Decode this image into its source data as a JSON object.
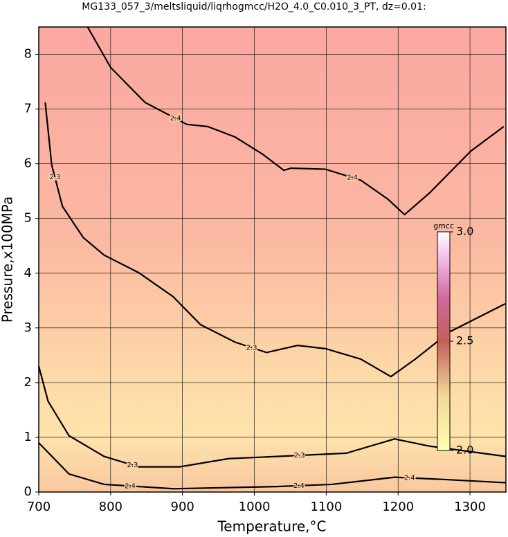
{
  "chart_data": {
    "type": "contour",
    "title": "MG133_057_3/meltsliquid/liqrhogmcc/H2O_4.0_C0.010_3_PT, dz=0.01:",
    "x_label": "Temperature,°C",
    "y_label": "Pressure,x100MPa",
    "xlim": [
      700,
      1350
    ],
    "ylim": [
      0,
      8.5
    ],
    "xticks": [
      700,
      800,
      900,
      1000,
      1100,
      1200,
      1300
    ],
    "yticks": [
      0,
      1,
      2,
      3,
      4,
      5,
      6,
      7,
      8
    ],
    "grid": true,
    "series": [
      {
        "name": "2.4",
        "color": "#000000",
        "x": [
          768,
          800,
          848,
          906,
          935,
          973,
          1012,
          1041,
          1051,
          1099,
          1148,
          1186,
          1209,
          1244,
          1301,
          1347
        ],
        "y": [
          8.5,
          7.76,
          7.12,
          6.72,
          6.68,
          6.49,
          6.17,
          5.88,
          5.92,
          5.9,
          5.7,
          5.35,
          5.07,
          5.47,
          6.23,
          6.68
        ]
      },
      {
        "name": "2.3",
        "color": "#000000",
        "x": [
          709,
          718,
          733,
          762,
          791,
          839,
          887,
          925,
          973,
          1017,
          1060,
          1099,
          1148,
          1190,
          1224,
          1272,
          1349
        ],
        "y": [
          7.12,
          5.98,
          5.22,
          4.65,
          4.33,
          4.01,
          3.57,
          3.06,
          2.74,
          2.55,
          2.68,
          2.62,
          2.43,
          2.11,
          2.43,
          2.93,
          3.44
        ]
      },
      {
        "name": "2.3",
        "color": "#000000",
        "x": [
          700,
          713,
          742,
          791,
          839,
          896,
          964,
          1031,
          1128,
          1195,
          1243,
          1350
        ],
        "y": [
          2.3,
          1.66,
          1.03,
          0.65,
          0.46,
          0.46,
          0.61,
          0.65,
          0.71,
          0.97,
          0.84,
          0.65
        ]
      },
      {
        "name": "2.4",
        "color": "#000000",
        "x": [
          700,
          742,
          791,
          887,
          1031,
          1108,
          1195,
          1263,
          1350
        ],
        "y": [
          0.9,
          0.33,
          0.14,
          0.06,
          0.1,
          0.14,
          0.27,
          0.23,
          0.17
        ]
      }
    ],
    "colorbar": {
      "label": "gmcc",
      "lim": [
        2.0,
        3.0
      ],
      "ticks": [
        {
          "value": 2.0,
          "label": "2.0"
        },
        2.5,
        {
          "value": 3.0,
          "label": "3.0"
        }
      ]
    }
  }
}
